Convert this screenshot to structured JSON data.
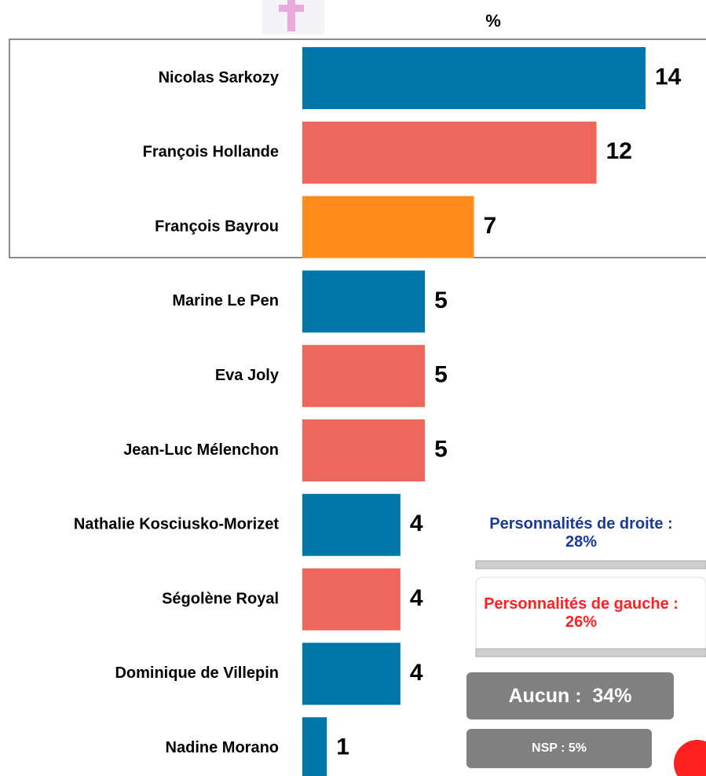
{
  "chart_data": {
    "type": "bar",
    "orientation": "horizontal",
    "unit_label": "%",
    "categories": [
      "Nicolas Sarkozy",
      "François Hollande",
      "François Bayrou",
      "Marine Le Pen",
      "Eva Joly",
      "Jean-Luc Mélenchon",
      "Nathalie Kosciusko-Morizet",
      "Ségolène Royal",
      "Dominique de Villepin",
      "Nadine Morano"
    ],
    "values": [
      14,
      12,
      7,
      5,
      5,
      5,
      4,
      4,
      4,
      1
    ],
    "colors": [
      "#0077a8",
      "#ee665c",
      "#ff8c1a",
      "#0077a8",
      "#ee665c",
      "#ee665c",
      "#0077a8",
      "#ee665c",
      "#0077a8",
      "#0077a8"
    ],
    "annotations": [
      "Personnalités de droite : 28%",
      "Personnalités de gauche : 26%",
      "Aucun :  34%",
      "NSP : 5%"
    ]
  }
}
